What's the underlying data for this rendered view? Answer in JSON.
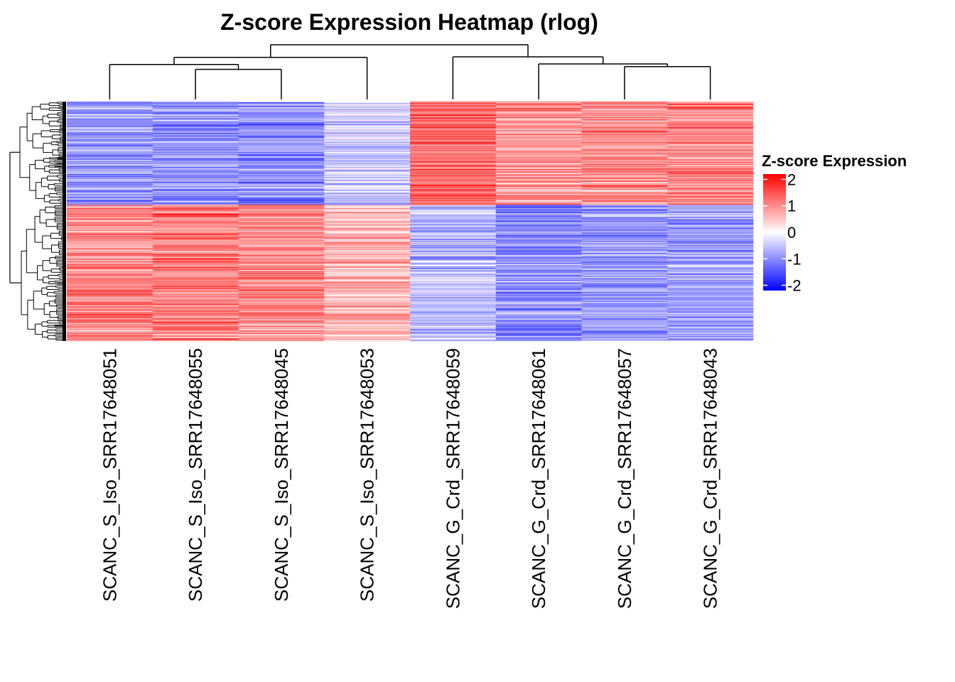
{
  "chart_data": {
    "type": "heatmap",
    "title": "Z-score Expression Heatmap (rlog)",
    "columns": [
      "SCANC_S_Iso_SRR17648051",
      "SCANC_S_Iso_SRR17648055",
      "SCANC_S_Iso_SRR17648045",
      "SCANC_S_Iso_SRR17648053",
      "SCANC_G_Crd_SRR17648059",
      "SCANC_G_Crd_SRR17648061",
      "SCANC_G_Crd_SRR17648057",
      "SCANC_G_Crd_SRR17648043"
    ],
    "row_clusters": [
      {
        "name": "upper",
        "n_rows": 144,
        "mean_z": [
          -0.9,
          -0.9,
          -1.0,
          -0.4,
          1.3,
          0.9,
          1.0,
          1.0
        ]
      },
      {
        "name": "lower",
        "n_rows": 190,
        "mean_z": [
          1.0,
          1.1,
          1.0,
          0.6,
          -0.6,
          -1.0,
          -0.9,
          -0.9
        ]
      }
    ],
    "column_dendrogram": {
      "merges": [
        {
          "a": 6,
          "b": 7,
          "height": 0.6
        },
        {
          "a": 1,
          "b": 2,
          "height": 0.55
        },
        {
          "a": 5,
          "b": "6-7",
          "height": 0.65
        },
        {
          "a": 0,
          "b": "1-2",
          "height": 0.64
        },
        {
          "a": "0-1-2",
          "b": 3,
          "height": 0.77
        },
        {
          "a": 4,
          "b": "5-6-7",
          "height": 0.78
        },
        {
          "a": "S_Iso",
          "b": "G_Crd",
          "height": 1.0
        }
      ]
    },
    "legend": {
      "title": "Z-score Expression",
      "ticks": [
        2,
        1,
        0,
        -1,
        -2
      ],
      "range": [
        -2.2,
        2.2
      ],
      "colors": {
        "low": "#0000ff",
        "mid": "#ffffff",
        "high": "#ff0000"
      }
    }
  }
}
